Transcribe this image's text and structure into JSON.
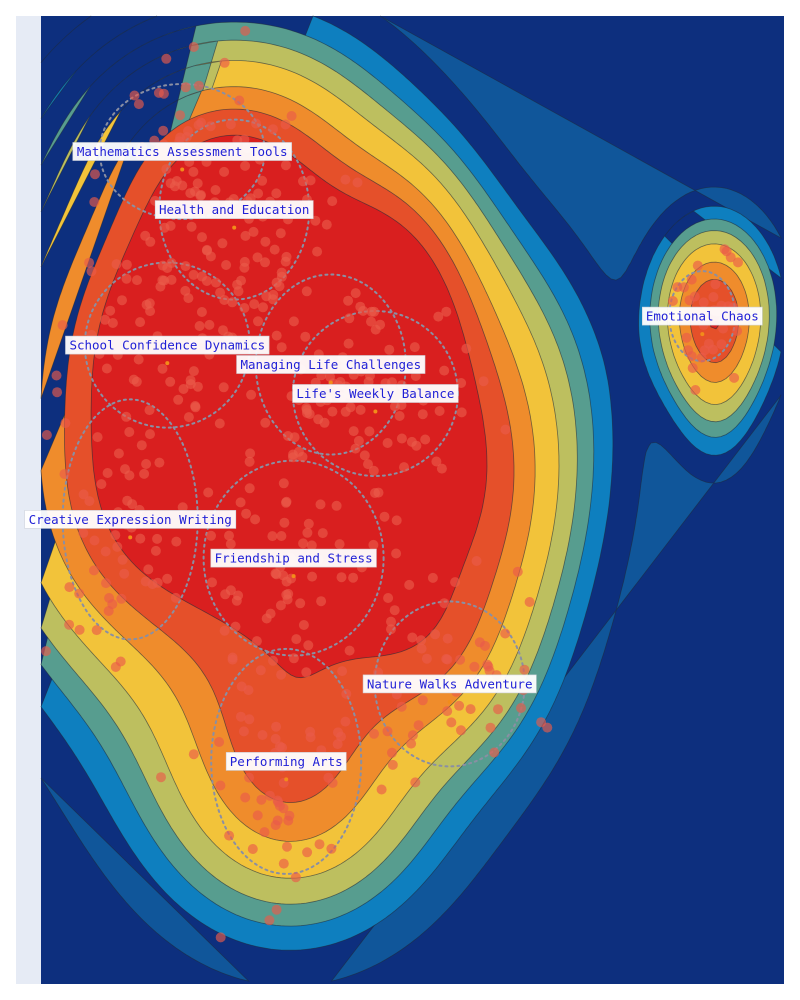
{
  "colors": {
    "page_background": "#ffffff",
    "plot_background": "#e6ebf5",
    "density_levels": [
      "#0d2f7e",
      "#10569a",
      "#0e7fbf",
      "#579d8f",
      "#bdbf5f",
      "#f2c33a",
      "#ef8c2c",
      "#e5502a",
      "#d91f1f"
    ],
    "point_color": "#ea5a4a",
    "contour_line_color": "#1e2a3a",
    "dotted_outline_color": "#8a8fa3",
    "label_box_fill": "#ffffff",
    "label_text_color": "#1f1fd6",
    "centroid_marker_color": "#f28c1a"
  },
  "chart_data": {
    "type": "scatter",
    "subtype": "document-map with 2D density contours",
    "title": "",
    "xlabel": "",
    "ylabel": "",
    "axes_visible": false,
    "gridlines": false,
    "legend": "none",
    "x_range": [
      0,
      10
    ],
    "y_range": [
      0,
      10
    ],
    "clusters": [
      {
        "label": "Mathematics Assessment Tools",
        "x": 1.9,
        "y": 8.6
      },
      {
        "label": "Health and Education",
        "x": 2.6,
        "y": 8.0
      },
      {
        "label": "School Confidence Dynamics",
        "x": 1.7,
        "y": 6.6
      },
      {
        "label": "Managing Life Challenges",
        "x": 3.9,
        "y": 6.4
      },
      {
        "label": "Life's Weekly Balance",
        "x": 4.5,
        "y": 6.1
      },
      {
        "label": "Creative Expression Writing",
        "x": 1.2,
        "y": 4.8
      },
      {
        "label": "Friendship and Stress",
        "x": 3.4,
        "y": 4.4
      },
      {
        "label": "Nature Walks Adventure",
        "x": 5.5,
        "y": 3.1
      },
      {
        "label": "Performing Arts",
        "x": 3.3,
        "y": 2.3
      },
      {
        "label": "Emotional Chaos",
        "x": 8.9,
        "y": 6.9
      }
    ]
  }
}
